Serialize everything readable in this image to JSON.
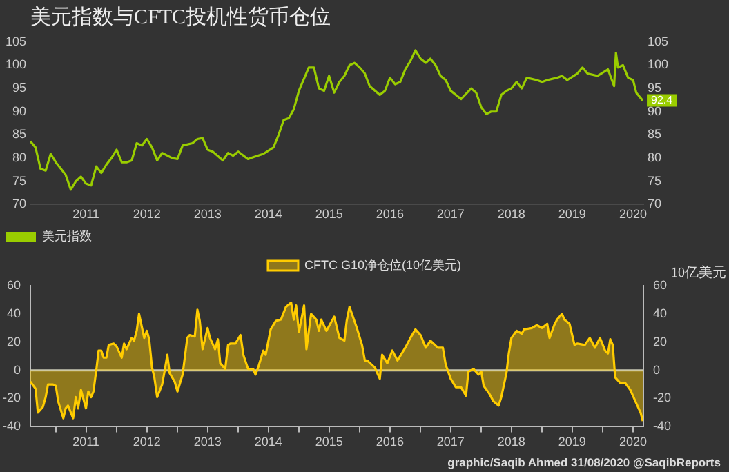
{
  "chart_data": [
    {
      "type": "line",
      "title": "美元指数与CFTC投机性货币仓位",
      "legend": "bottom left",
      "marker": "none",
      "xlim": [
        "2010-08",
        "2020-09"
      ],
      "xticks": [
        {
          "value": "2011-07",
          "label": "2011"
        },
        {
          "value": "2012-07",
          "label": "2012"
        },
        {
          "value": "2013-07",
          "label": "2013"
        },
        {
          "value": "2014-07",
          "label": "2014"
        },
        {
          "value": "2015-07",
          "label": "2015"
        },
        {
          "value": "2016-07",
          "label": "2016"
        },
        {
          "value": "2017-07",
          "label": "2017"
        },
        {
          "value": "2018-07",
          "label": "2018"
        },
        {
          "value": "2019-07",
          "label": "2019"
        },
        {
          "value": "2020-07",
          "label": "2020"
        }
      ],
      "ylim": [
        70,
        105
      ],
      "yticks": [
        70,
        75,
        80,
        85,
        90,
        95,
        100,
        105
      ],
      "y2lim": [
        70,
        105
      ],
      "y2ticks": [
        70,
        75,
        80,
        85,
        90,
        95,
        100,
        105
      ],
      "x": [
        "2010-08",
        "2010-09",
        "2010-10",
        "2010-11",
        "2010-12",
        "2011-01",
        "2011-03",
        "2011-04",
        "2011-05",
        "2011-06",
        "2011-07",
        "2011-08",
        "2011-09",
        "2011-10",
        "2011-11",
        "2011-12",
        "2012-01",
        "2012-02",
        "2012-03",
        "2012-04",
        "2012-05",
        "2012-06",
        "2012-07",
        "2012-08",
        "2012-09",
        "2012-10",
        "2012-12",
        "2013-01",
        "2013-02",
        "2013-04",
        "2013-05",
        "2013-06",
        "2013-07",
        "2013-08",
        "2013-10",
        "2013-11",
        "2013-12",
        "2014-01",
        "2014-03",
        "2014-04",
        "2014-06",
        "2014-08",
        "2014-09",
        "2014-10",
        "2014-11",
        "2014-12",
        "2015-01",
        "2015-03",
        "2015-04",
        "2015-05",
        "2015-06",
        "2015-07",
        "2015-08",
        "2015-09",
        "2015-10",
        "2015-11",
        "2015-12",
        "2016-01",
        "2016-02",
        "2016-03",
        "2016-05",
        "2016-06",
        "2016-07",
        "2016-08",
        "2016-09",
        "2016-10",
        "2016-11",
        "2016-12",
        "2017-01",
        "2017-02",
        "2017-03",
        "2017-04",
        "2017-05",
        "2017-06",
        "2017-07",
        "2017-09",
        "2017-11",
        "2017-12",
        "2018-01",
        "2018-02",
        "2018-03",
        "2018-04",
        "2018-05",
        "2018-06",
        "2018-07",
        "2018-08",
        "2018-09",
        "2018-10",
        "2018-12",
        "2019-01",
        "2019-02",
        "2019-04",
        "2019-05",
        "2019-06",
        "2019-08",
        "2019-09",
        "2019-10",
        "2019-12",
        "2020-02",
        "2020-03-09",
        "2020-03-20",
        "2020-04",
        "2020-05",
        "2020-06",
        "2020-07-01",
        "2020-07-20",
        "2020-08-28"
      ],
      "series": [
        {
          "name": "美元指数",
          "color": "#9acd00",
          "values": [
            83.6,
            82.3,
            77.7,
            77.3,
            80.9,
            79.1,
            76.4,
            73.2,
            75,
            76,
            74.5,
            74.1,
            78.2,
            76.8,
            78.6,
            80,
            81.8,
            79.1,
            79.1,
            79.5,
            83.2,
            82.7,
            84.1,
            82.3,
            79.5,
            81.1,
            80,
            79.8,
            82.7,
            83.2,
            84.1,
            84.3,
            81.8,
            81.4,
            79.5,
            81.1,
            80.5,
            81.4,
            79.8,
            80.2,
            80.9,
            82.3,
            85,
            88.2,
            88.6,
            90.5,
            94.5,
            99.5,
            99.5,
            95,
            94.5,
            97.7,
            94.1,
            96.4,
            97.7,
            100,
            100.5,
            99.5,
            98.2,
            95.5,
            93.6,
            94.5,
            97.3,
            95.9,
            96.4,
            99.1,
            100.9,
            103.2,
            101.4,
            100.5,
            101.4,
            100,
            97.7,
            96.8,
            94.5,
            92.7,
            95,
            94.1,
            90.9,
            89.5,
            90,
            90,
            93.6,
            94.5,
            95,
            96.4,
            95,
            97.3,
            96.8,
            96.4,
            96.8,
            97.3,
            97.7,
            96.8,
            98.2,
            99.5,
            98.2,
            97.7,
            99.1,
            95.5,
            102.7,
            99.5,
            100,
            97.3,
            96.8,
            94.1,
            92.4
          ],
          "value_labels": [
            null,
            null,
            null,
            null,
            null,
            null,
            null,
            null,
            null,
            null,
            null,
            null,
            null,
            null,
            null,
            null,
            null,
            null,
            null,
            null,
            null,
            null,
            null,
            null,
            null,
            null,
            null,
            null,
            null,
            null,
            null,
            null,
            null,
            null,
            null,
            null,
            null,
            null,
            null,
            null,
            null,
            null,
            null,
            null,
            null,
            null,
            null,
            null,
            null,
            null,
            null,
            null,
            null,
            null,
            null,
            null,
            null,
            null,
            null,
            null,
            null,
            null,
            null,
            null,
            null,
            null,
            null,
            null,
            null,
            null,
            null,
            null,
            null,
            null,
            null,
            null,
            null,
            null,
            null,
            null,
            null,
            null,
            null,
            null,
            null,
            null,
            null,
            null,
            null,
            null,
            null,
            null,
            null,
            null,
            null,
            null,
            null,
            null,
            null,
            null,
            null,
            null,
            null,
            null,
            null,
            null,
            "92.4"
          ]
        }
      ]
    },
    {
      "type": "area",
      "legend": "top",
      "marker": "none",
      "y2label": "10亿美元",
      "annotations": [
        "graphic/Saqib Ahmed 31/08/2020 @SaqibReports"
      ],
      "ref_lines": [
        {
          "axis": "y",
          "value": 0,
          "color": "#c8c8b4"
        }
      ],
      "xlim": [
        "2010-08",
        "2020-09"
      ],
      "xticks": [
        {
          "value": "2011-01",
          "label": null
        },
        {
          "value": "2011-07",
          "label": "2011"
        },
        {
          "value": "2012-01",
          "label": null
        },
        {
          "value": "2012-07",
          "label": "2012"
        },
        {
          "value": "2013-01",
          "label": null
        },
        {
          "value": "2013-07",
          "label": "2013"
        },
        {
          "value": "2014-01",
          "label": null
        },
        {
          "value": "2014-07",
          "label": "2014"
        },
        {
          "value": "2015-01",
          "label": null
        },
        {
          "value": "2015-07",
          "label": "2015"
        },
        {
          "value": "2016-01",
          "label": null
        },
        {
          "value": "2016-07",
          "label": "2016"
        },
        {
          "value": "2017-01",
          "label": null
        },
        {
          "value": "2017-07",
          "label": "2017"
        },
        {
          "value": "2018-01",
          "label": null
        },
        {
          "value": "2018-07",
          "label": "2018"
        },
        {
          "value": "2019-01",
          "label": null
        },
        {
          "value": "2019-07",
          "label": "2019"
        },
        {
          "value": "2020-01",
          "label": null
        },
        {
          "value": "2020-07",
          "label": "2020"
        }
      ],
      "ylim": [
        -40,
        60
      ],
      "yticks": [
        -40,
        -20,
        0,
        20,
        40,
        60
      ],
      "y2lim": [
        -40,
        60
      ],
      "y2ticks": [
        -40,
        -20,
        0,
        20,
        40,
        60
      ],
      "x": [
        "2010-08-01",
        "2010-09-01",
        "2010-09-15",
        "2010-10-15",
        "2010-11-01",
        "2010-11-15",
        "2010-12-15",
        "2011-01-01",
        "2011-01-15",
        "2011-02-15",
        "2011-03-01",
        "2011-03-15",
        "2011-04-15",
        "2011-05-01",
        "2011-05-15",
        "2011-06-01",
        "2011-07-01",
        "2011-07-15",
        "2011-08-01",
        "2011-08-15",
        "2011-09-01",
        "2011-09-15",
        "2011-10-01",
        "2011-10-15",
        "2011-11-01",
        "2011-11-15",
        "2011-12-15",
        "2012-01-01",
        "2012-02-01",
        "2012-02-15",
        "2012-03-01",
        "2012-04-01",
        "2012-04-15",
        "2012-05-01",
        "2012-05-15",
        "2012-06-15",
        "2012-07-01",
        "2012-07-15",
        "2012-08-01",
        "2012-08-15",
        "2012-09-01",
        "2012-10-01",
        "2012-10-15",
        "2012-11-01",
        "2012-11-15",
        "2012-12-15",
        "2013-01-01",
        "2013-02-01",
        "2013-03-01",
        "2013-03-15",
        "2013-04-15",
        "2013-05-01",
        "2013-05-15",
        "2013-06-01",
        "2013-07-01",
        "2013-07-15",
        "2013-08-15",
        "2013-09-01",
        "2013-09-15",
        "2013-10-15",
        "2013-11-01",
        "2013-11-15",
        "2013-12-15",
        "2014-01-15",
        "2014-02-01",
        "2014-03-01",
        "2014-04-01",
        "2014-04-15",
        "2014-05-01",
        "2014-06-01",
        "2014-06-15",
        "2014-07-15",
        "2014-08-15",
        "2014-09-15",
        "2014-10-15",
        "2014-11-15",
        "2014-12-01",
        "2014-12-15",
        "2015-01-01",
        "2015-02-01",
        "2015-02-15",
        "2015-03-15",
        "2015-04-15",
        "2015-05-01",
        "2015-05-15",
        "2015-06-15",
        "2015-08-01",
        "2015-09-01",
        "2015-10-01",
        "2015-10-15",
        "2015-11-01",
        "2015-12-15",
        "2016-01-15",
        "2016-02-01",
        "2016-02-15",
        "2016-04-01",
        "2016-05-01",
        "2016-05-15",
        "2016-06-15",
        "2016-07-15",
        "2016-08-15",
        "2016-10-01",
        "2016-11-01",
        "2016-12-01",
        "2017-01-01",
        "2017-02-01",
        "2017-03-01",
        "2017-04-15",
        "2017-05-15",
        "2017-06-01",
        "2017-07-01",
        "2017-08-01",
        "2017-09-01",
        "2017-10-01",
        "2017-10-15",
        "2017-11-15",
        "2017-12-15",
        "2018-01-01",
        "2018-01-15",
        "2018-02-15",
        "2018-03-15",
        "2018-04-15",
        "2018-05-01",
        "2018-06-01",
        "2018-06-15",
        "2018-07-01",
        "2018-08-01",
        "2018-09-01",
        "2018-09-15",
        "2018-11-01",
        "2018-12-01",
        "2019-01-01",
        "2019-02-01",
        "2019-02-15",
        "2019-03-15",
        "2019-04-01",
        "2019-05-01",
        "2019-05-15",
        "2019-06-15",
        "2019-07-15",
        "2019-08-01",
        "2019-09-15",
        "2019-10-15",
        "2019-11-15",
        "2019-12-15",
        "2020-01-15",
        "2020-02-01",
        "2020-02-15",
        "2020-03-01",
        "2020-03-15",
        "2020-04-15",
        "2020-05-15",
        "2020-06-15",
        "2020-07-15",
        "2020-08-15",
        "2020-08-28"
      ],
      "series": [
        {
          "name": "CFTC G10净仓位(10亿美元)",
          "color": "#ffcc00",
          "values": [
            -8,
            -13,
            -30,
            -26,
            -19,
            -10,
            -10,
            -11,
            -22,
            -34,
            -27,
            -25,
            -34,
            -19,
            -27,
            -14,
            -27,
            -15,
            -19,
            -15,
            0,
            14,
            14,
            9,
            9,
            18,
            19,
            17,
            9,
            19,
            15,
            23,
            21,
            28,
            40,
            23,
            28,
            22,
            2,
            -5,
            -19,
            -10,
            -1,
            11,
            -2,
            -8,
            -15,
            -3,
            23,
            25,
            24,
            43,
            35,
            15,
            30,
            23,
            15,
            22,
            5,
            1,
            18,
            19,
            19,
            25,
            11,
            1,
            1,
            -3,
            2,
            14,
            11,
            29,
            35,
            36,
            45,
            48,
            36,
            46,
            27,
            46,
            15,
            40,
            36,
            28,
            36,
            28,
            38,
            23,
            21,
            35,
            45,
            30,
            18,
            7,
            7,
            2,
            -6,
            11,
            5,
            14,
            7,
            16,
            23,
            29,
            25,
            16,
            21,
            16,
            16,
            4,
            -6,
            -12,
            -12,
            -18,
            -1,
            1,
            -3,
            -1,
            -11,
            -16,
            -22,
            -25,
            -19,
            -2,
            12,
            23,
            28,
            26,
            29,
            30,
            32,
            30,
            33,
            23,
            32,
            36,
            40,
            36,
            33,
            18,
            19,
            18,
            23,
            16,
            23,
            14,
            12,
            22,
            18,
            -5,
            -9,
            -9,
            -14,
            -22,
            -30,
            -36
          ]
        }
      ]
    }
  ]
}
